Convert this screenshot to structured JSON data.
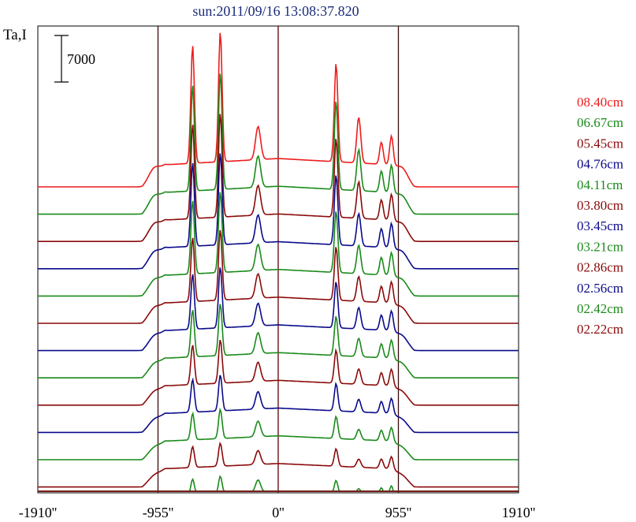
{
  "title": "sun:2011/09/16 13:08:37.820",
  "chart_data": {
    "type": "line",
    "title": "sun:2011/09/16 13:08:37.820",
    "ylabel": "Ta,I",
    "scale_bar_label": "7000",
    "x_ticks": [
      "-1910''",
      "-955''",
      "0''",
      "955''",
      "1910''"
    ],
    "x_tick_values": [
      -1910,
      -955,
      0,
      955,
      1910
    ],
    "xlim": [
      -1910,
      1910
    ],
    "vertical_lines": [
      -955,
      0,
      955
    ],
    "series": [
      {
        "name": "08.40cm",
        "color": "#ee1c1c"
      },
      {
        "name": "06.67cm",
        "color": "#1a8a1a"
      },
      {
        "name": "05.45cm",
        "color": "#8b0a0a"
      },
      {
        "name": "04.76cm",
        "color": "#0a0a8b"
      },
      {
        "name": "04.11cm",
        "color": "#1a8a1a"
      },
      {
        "name": "03.80cm",
        "color": "#8b0a0a"
      },
      {
        "name": "03.45cm",
        "color": "#0a0a8b"
      },
      {
        "name": "03.21cm",
        "color": "#1a8a1a"
      },
      {
        "name": "02.86cm",
        "color": "#8b0a0a"
      },
      {
        "name": "02.56cm",
        "color": "#0a0a8b"
      },
      {
        "name": "02.42cm",
        "color": "#1a8a1a"
      },
      {
        "name": "02.22cm",
        "color": "#8b0a0a"
      }
    ],
    "repeated_unlabeled_profiles": [
      {
        "color": "#1a8a1a"
      },
      {
        "color": "#8b0a0a"
      },
      {
        "color": "#0a0a8b"
      },
      {
        "color": "#1a8a1a"
      },
      {
        "color": "#8b0a0a"
      }
    ],
    "peaks": [
      -680,
      -460,
      -160,
      460,
      640,
      820,
      900
    ],
    "legend_position": "right"
  }
}
